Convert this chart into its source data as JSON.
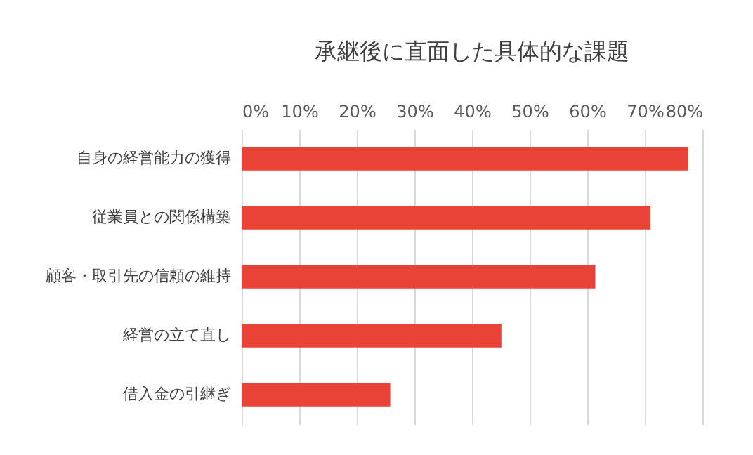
{
  "chart_data": {
    "type": "bar",
    "orientation": "horizontal",
    "title": "承継後に直面した具体的な課題",
    "categories": [
      "自身の経営能力の獲得",
      "従業員との関係構築",
      "顧客・取引先の信頼の維持",
      "経営の立て直し",
      "借入金の引継ぎ"
    ],
    "values": [
      77.5,
      71.0,
      61.4,
      45.1,
      25.8
    ],
    "color": "#e84336",
    "xlim": [
      0,
      80
    ],
    "xticks": [
      {
        "value": 0,
        "label": "0%"
      },
      {
        "value": 10,
        "label": "10%"
      },
      {
        "value": 20,
        "label": "20%"
      },
      {
        "value": 30,
        "label": "30%"
      },
      {
        "value": 40,
        "label": "40%"
      },
      {
        "value": 50,
        "label": "50%"
      },
      {
        "value": 60,
        "label": "60%"
      },
      {
        "value": 70,
        "label": "70%"
      },
      {
        "value": 80,
        "label": "80%"
      }
    ],
    "grid": "x"
  }
}
